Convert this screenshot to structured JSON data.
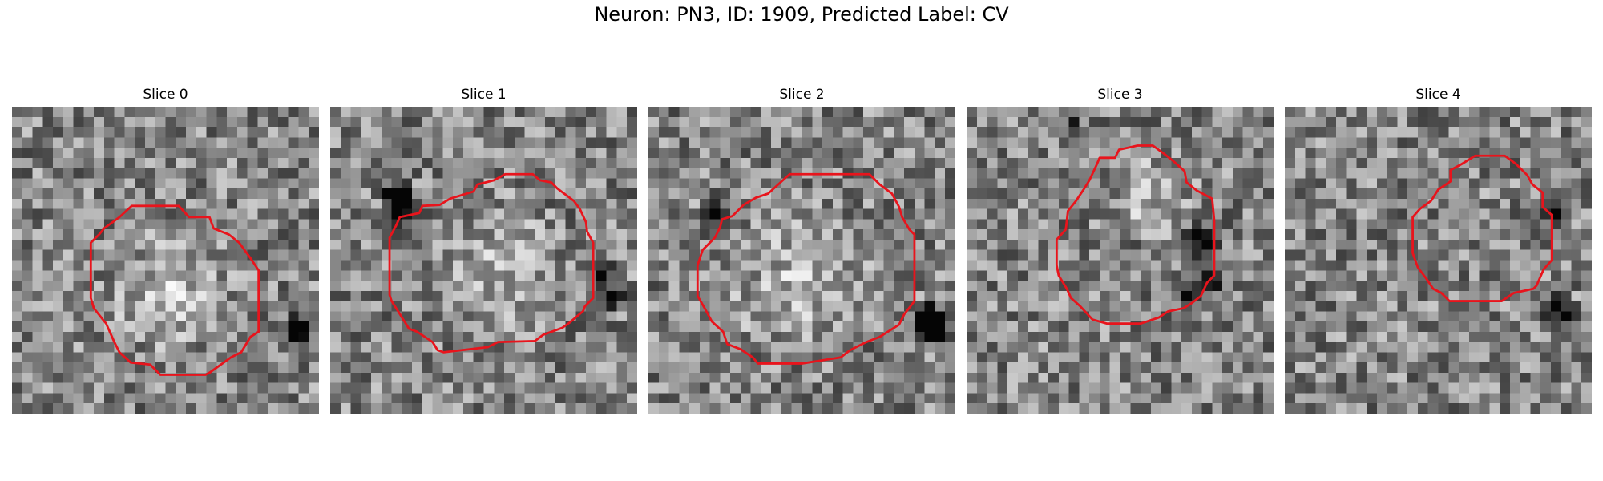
{
  "figure": {
    "title": "Neuron: PN3, ID: 1909, Predicted Label: CV"
  },
  "grid_cells": 30,
  "outline_color": "#e8141c",
  "panels": [
    {
      "title": "Slice 0",
      "seed": 11,
      "blob": {
        "cx": 15.2,
        "cy": 18.0,
        "r": 7.5,
        "b": 0.22
      },
      "dark": [
        [
          27,
          22,
          0.6
        ],
        [
          28,
          21,
          0.6
        ]
      ],
      "outline": [
        [
          10.5,
          10.8
        ],
        [
          11.7,
          9.7
        ],
        [
          16.3,
          9.7
        ],
        [
          17.3,
          10.8
        ],
        [
          19.3,
          10.8
        ],
        [
          19.7,
          11.9
        ],
        [
          21.2,
          12.5
        ],
        [
          22.2,
          13.3
        ],
        [
          23.3,
          14.8
        ],
        [
          24.1,
          16.0
        ],
        [
          24.1,
          22.0
        ],
        [
          23.3,
          22.5
        ],
        [
          22.4,
          24.0
        ],
        [
          21.4,
          24.5
        ],
        [
          19.3,
          26.0
        ],
        [
          18.9,
          26.2
        ],
        [
          14.5,
          26.2
        ],
        [
          13.5,
          25.2
        ],
        [
          11.6,
          25.0
        ],
        [
          10.5,
          24.0
        ],
        [
          10.0,
          23.0
        ],
        [
          9.2,
          21.2
        ],
        [
          8.0,
          19.7
        ],
        [
          7.7,
          18.7
        ],
        [
          7.7,
          13.3
        ],
        [
          8.6,
          12.4
        ],
        [
          9.0,
          11.9
        ]
      ]
    },
    {
      "title": "Slice 1",
      "seed": 29,
      "blob": {
        "cx": 16.0,
        "cy": 16.0,
        "r": 8.5,
        "b": 0.18
      },
      "dark": [
        [
          6,
          8,
          0.7
        ],
        [
          7,
          9,
          0.7
        ],
        [
          6,
          10,
          0.5
        ],
        [
          26,
          16,
          0.5
        ],
        [
          27,
          18,
          0.5
        ]
      ],
      "outline": [
        [
          6.8,
          10.8
        ],
        [
          8.7,
          10.4
        ],
        [
          9.0,
          9.7
        ],
        [
          10.7,
          9.6
        ],
        [
          11.7,
          9.0
        ],
        [
          14.0,
          8.3
        ],
        [
          14.4,
          7.6
        ],
        [
          16.0,
          7.2
        ],
        [
          17.1,
          6.6
        ],
        [
          19.8,
          6.6
        ],
        [
          20.5,
          7.2
        ],
        [
          21.6,
          7.4
        ],
        [
          22.2,
          8.0
        ],
        [
          23.8,
          9.2
        ],
        [
          24.4,
          10.0
        ],
        [
          25.0,
          11.3
        ],
        [
          25.1,
          12.2
        ],
        [
          25.7,
          13.3
        ],
        [
          25.7,
          18.7
        ],
        [
          24.9,
          19.5
        ],
        [
          24.7,
          20.0
        ],
        [
          23.4,
          21.1
        ],
        [
          22.7,
          21.6
        ],
        [
          20.8,
          22.3
        ],
        [
          20.0,
          22.9
        ],
        [
          16.4,
          23.0
        ],
        [
          15.4,
          23.5
        ],
        [
          11.1,
          24.0
        ],
        [
          10.5,
          23.8
        ],
        [
          10.0,
          23.0
        ],
        [
          8.5,
          22.0
        ],
        [
          7.7,
          21.7
        ],
        [
          6.7,
          20.1
        ],
        [
          6.0,
          19.0
        ],
        [
          5.8,
          18.4
        ],
        [
          5.8,
          12.8
        ],
        [
          6.4,
          11.7
        ]
      ]
    },
    {
      "title": "Slice 2",
      "seed": 47,
      "blob": {
        "cx": 14.8,
        "cy": 17.0,
        "r": 9.0,
        "b": 0.22
      },
      "dark": [
        [
          6,
          10,
          0.7
        ],
        [
          27,
          20,
          0.6
        ],
        [
          27,
          21,
          0.7
        ],
        [
          28,
          22,
          0.6
        ]
      ],
      "outline": [
        [
          7.0,
          11.8
        ],
        [
          7.2,
          11.0
        ],
        [
          8.2,
          10.7
        ],
        [
          9.3,
          9.6
        ],
        [
          10.5,
          8.9
        ],
        [
          11.7,
          8.5
        ],
        [
          12.8,
          7.5
        ],
        [
          13.8,
          6.6
        ],
        [
          21.6,
          6.6
        ],
        [
          22.6,
          7.6
        ],
        [
          23.8,
          8.5
        ],
        [
          24.5,
          9.8
        ],
        [
          24.8,
          10.8
        ],
        [
          25.5,
          12.0
        ],
        [
          26.0,
          12.5
        ],
        [
          26.0,
          19.0
        ],
        [
          25.0,
          20.3
        ],
        [
          24.5,
          21.3
        ],
        [
          23.4,
          22.0
        ],
        [
          22.6,
          22.5
        ],
        [
          21.3,
          23.0
        ],
        [
          19.7,
          23.8
        ],
        [
          18.8,
          24.5
        ],
        [
          15.0,
          25.1
        ],
        [
          10.7,
          25.1
        ],
        [
          10.2,
          24.5
        ],
        [
          9.0,
          23.7
        ],
        [
          7.7,
          23.2
        ],
        [
          7.3,
          22.0
        ],
        [
          6.2,
          21.0
        ],
        [
          5.5,
          19.7
        ],
        [
          4.8,
          18.5
        ],
        [
          4.8,
          15.5
        ],
        [
          5.3,
          14.0
        ],
        [
          6.5,
          12.8
        ]
      ]
    },
    {
      "title": "Slice 3",
      "seed": 83,
      "blob": {
        "cx": 18.0,
        "cy": 8.5,
        "r": 5.0,
        "b": 0.24
      },
      "dark": [
        [
          22,
          12,
          0.6
        ],
        [
          23,
          13,
          0.6
        ],
        [
          21,
          18,
          0.5
        ],
        [
          23,
          17,
          0.5
        ],
        [
          10,
          2,
          0.4
        ]
      ],
      "outline": [
        [
          12.7,
          5.7
        ],
        [
          13.0,
          5.0
        ],
        [
          14.5,
          5.0
        ],
        [
          14.9,
          4.2
        ],
        [
          15.8,
          4.0
        ],
        [
          16.7,
          3.8
        ],
        [
          18.2,
          3.8
        ],
        [
          19.3,
          4.6
        ],
        [
          20.3,
          5.4
        ],
        [
          21.3,
          6.3
        ],
        [
          21.5,
          7.4
        ],
        [
          22.5,
          8.2
        ],
        [
          24.0,
          9.0
        ],
        [
          24.2,
          11.1
        ],
        [
          24.2,
          16.5
        ],
        [
          23.5,
          17.2
        ],
        [
          22.9,
          18.5
        ],
        [
          22.0,
          19.2
        ],
        [
          21.2,
          19.7
        ],
        [
          19.7,
          20.0
        ],
        [
          18.8,
          20.6
        ],
        [
          17.0,
          21.2
        ],
        [
          13.7,
          21.2
        ],
        [
          12.3,
          20.8
        ],
        [
          11.1,
          19.5
        ],
        [
          10.2,
          18.7
        ],
        [
          9.8,
          17.8
        ],
        [
          9.0,
          16.5
        ],
        [
          8.8,
          15.5
        ],
        [
          8.8,
          13.0
        ],
        [
          9.7,
          12.0
        ],
        [
          9.9,
          10.2
        ],
        [
          10.7,
          9.2
        ],
        [
          11.5,
          8.0
        ],
        [
          12.0,
          7.2
        ]
      ]
    },
    {
      "title": "Slice 4",
      "seed": 101,
      "blob": {
        "cx": 19.0,
        "cy": 12.0,
        "r": 6.0,
        "b": 0.0
      },
      "dark": [
        [
          26,
          10,
          0.7
        ],
        [
          26,
          19,
          0.6
        ],
        [
          27,
          20,
          0.6
        ]
      ],
      "outline": [
        [
          12.5,
          10.8
        ],
        [
          13.2,
          10.0
        ],
        [
          14.3,
          9.2
        ],
        [
          15.0,
          8.1
        ],
        [
          16.2,
          7.3
        ],
        [
          16.2,
          6.2
        ],
        [
          17.3,
          5.6
        ],
        [
          18.6,
          4.8
        ],
        [
          21.5,
          4.8
        ],
        [
          22.6,
          5.6
        ],
        [
          23.7,
          6.7
        ],
        [
          24.2,
          7.6
        ],
        [
          25.2,
          8.4
        ],
        [
          25.2,
          9.8
        ],
        [
          26.1,
          10.6
        ],
        [
          26.1,
          15.0
        ],
        [
          25.3,
          15.9
        ],
        [
          24.6,
          17.5
        ],
        [
          24.3,
          17.8
        ],
        [
          22.4,
          18.2
        ],
        [
          21.2,
          19.0
        ],
        [
          16.1,
          19.0
        ],
        [
          15.3,
          18.2
        ],
        [
          14.5,
          17.8
        ],
        [
          13.9,
          16.9
        ],
        [
          13.0,
          15.7
        ],
        [
          12.5,
          14.3
        ],
        [
          12.5,
          12.5
        ]
      ]
    }
  ]
}
